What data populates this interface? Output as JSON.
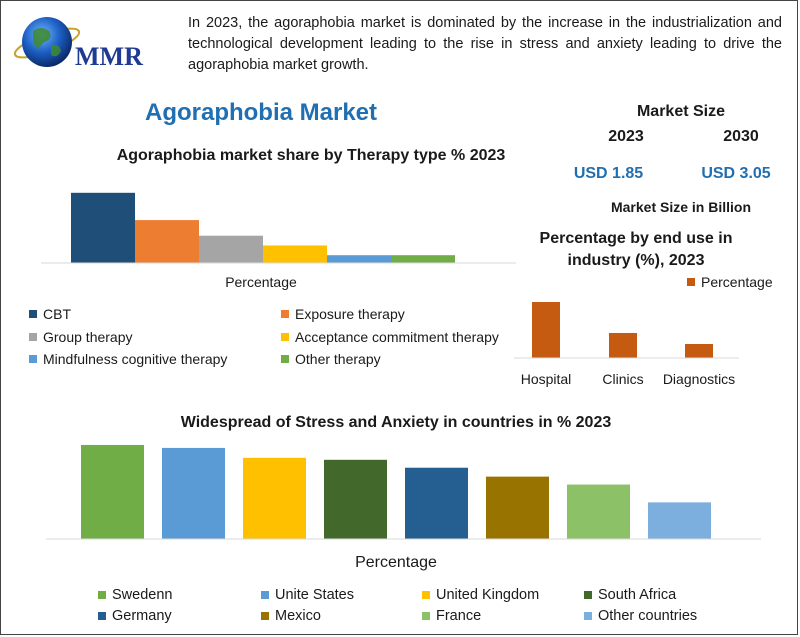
{
  "brand": {
    "logo_text": "MMR"
  },
  "intro_text": "In 2023, the agoraphobia market is dominated by the increase in the industrialization and technological development leading to the rise in stress and anxiety leading to drive the agoraphobia market growth.",
  "main_title": "Agoraphobia Market",
  "market_size": {
    "heading": "Market Size",
    "year_a": "2023",
    "year_b": "2030",
    "value_a": "USD 1.85",
    "value_b": "USD 3.05",
    "unit_label": "Market Size in Billion"
  },
  "chart_data": [
    {
      "type": "bar",
      "title": "Agoraphobia market share by Therapy type % 2023",
      "xlabel": "Percentage",
      "categories": [
        "CBT",
        "Exposure therapy",
        "Group therapy",
        "Acceptance commitment therapy",
        "Mindfulness cognitive therapy",
        "Other therapy"
      ],
      "values": [
        36,
        22,
        14,
        9,
        4,
        4
      ],
      "colors": [
        "#1f4e79",
        "#ed7d31",
        "#a5a5a5",
        "#ffc000",
        "#5b9bd5",
        "#70ad47"
      ],
      "ylim": [
        0,
        40
      ],
      "legend_position": "bottom",
      "grid": false
    },
    {
      "type": "bar",
      "title": "Percentage by end use in industry (%), 2023",
      "categories": [
        "Hospital",
        "Clinics",
        "Diagnostics"
      ],
      "series": [
        {
          "name": "Percentage",
          "values": [
            56,
            25,
            14
          ]
        }
      ],
      "colors": [
        "#c55a11"
      ],
      "ylim": [
        0,
        60
      ],
      "legend_position": "top-right",
      "grid": false
    },
    {
      "type": "bar",
      "title": "Widespread of Stress and Anxiety in countries in %  2023",
      "xlabel": "Percentage",
      "categories": [
        "Swedenn",
        "Unite States",
        "United Kingdom",
        "South Africa",
        "Germany",
        "Mexico",
        "France",
        "Other countries"
      ],
      "values": [
        95,
        92,
        82,
        80,
        72,
        63,
        55,
        37
      ],
      "colors": [
        "#70ad47",
        "#5b9bd5",
        "#ffc000",
        "#43682b",
        "#255e91",
        "#997300",
        "#8cc168",
        "#7cafdd"
      ],
      "ylim": [
        0,
        100
      ],
      "legend_position": "bottom",
      "grid": false
    }
  ]
}
